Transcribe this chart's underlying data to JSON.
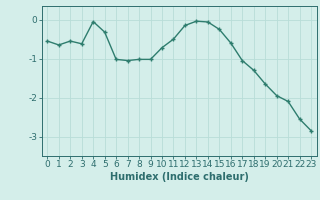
{
  "x": [
    0,
    1,
    2,
    3,
    4,
    5,
    6,
    7,
    8,
    9,
    10,
    11,
    12,
    13,
    14,
    15,
    16,
    17,
    18,
    19,
    20,
    21,
    22,
    23
  ],
  "y": [
    -0.55,
    -0.65,
    -0.55,
    -0.62,
    -0.05,
    -0.32,
    -1.02,
    -1.05,
    -1.02,
    -1.02,
    -0.72,
    -0.5,
    -0.15,
    -0.04,
    -0.06,
    -0.25,
    -0.6,
    -1.05,
    -1.3,
    -1.65,
    -1.95,
    -2.1,
    -2.55,
    -2.85
  ],
  "line_color": "#2e7d6e",
  "marker": "+",
  "marker_size": 3,
  "marker_edge_width": 1.0,
  "bg_color": "#d4eeea",
  "grid_color": "#b8ddd8",
  "text_color": "#2e6e6e",
  "xlabel": "Humidex (Indice chaleur)",
  "xlim": [
    -0.5,
    23.5
  ],
  "ylim": [
    -3.5,
    0.35
  ],
  "yticks": [
    0,
    -1,
    -2,
    -3
  ],
  "xticks": [
    0,
    1,
    2,
    3,
    4,
    5,
    6,
    7,
    8,
    9,
    10,
    11,
    12,
    13,
    14,
    15,
    16,
    17,
    18,
    19,
    20,
    21,
    22,
    23
  ],
  "xlabel_fontsize": 7,
  "tick_fontsize": 6.5,
  "line_width": 1.0
}
